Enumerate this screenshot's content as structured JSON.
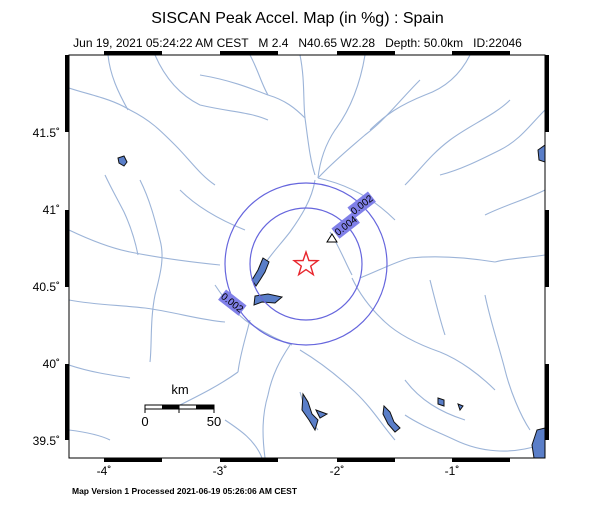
{
  "map": {
    "title": "SISCAN Peak Accel. Map (in %g) : Spain",
    "subtitle": "Jun 19, 2021 05:24:22 AM CEST   M 2.4   N40.65 W2.28   Depth: 50.0km   ID:22046",
    "footer": "Map Version 1 Processed 2021-06-19 05:26:06 AM CEST",
    "lat_ticks": [
      "41.5˚",
      "41˚",
      "40.5˚",
      "40˚",
      "39.5˚"
    ],
    "lon_ticks": [
      "-4˚",
      "-3˚",
      "-2˚",
      "-1˚"
    ],
    "contours": [
      {
        "label": "0.002",
        "value": 0.002
      },
      {
        "label": "0.004",
        "value": 0.004
      },
      {
        "label": "0.002",
        "value": 0.002
      }
    ],
    "scale_bar": {
      "unit": "km",
      "start_label": "0",
      "end_label": "50"
    },
    "epicenter": {
      "lat": 40.65,
      "lon": -2.28,
      "symbol": "star-icon",
      "color": "#e8262d"
    },
    "station": {
      "symbol": "triangle-icon"
    },
    "colors": {
      "river": "#9cb4d8",
      "contour": "#6666dd",
      "contour_label_bg": "#8080e8",
      "lake": "#5a7ec8"
    }
  }
}
